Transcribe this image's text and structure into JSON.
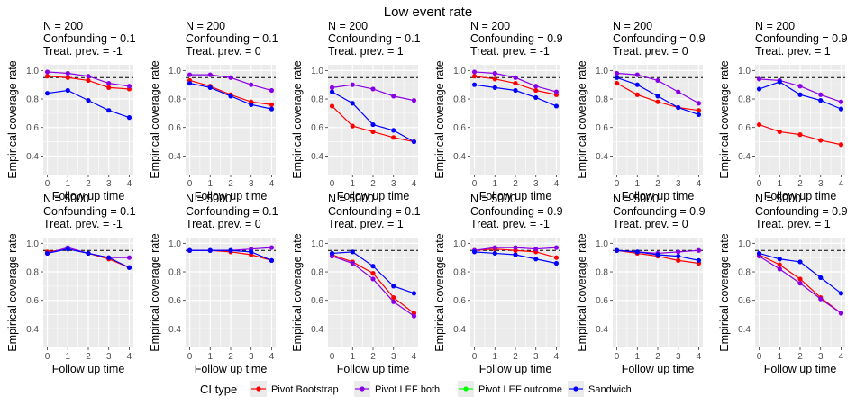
{
  "chart_data": {
    "type": "line",
    "title": "Low event rate",
    "xlabel": "Follow up time",
    "ylabel": "Empirical coverage rate",
    "x": [
      0,
      1,
      2,
      3,
      4
    ],
    "ylim": [
      0.27,
      1.04
    ],
    "yticks": [
      0.4,
      0.6,
      0.8,
      1.0
    ],
    "ytick_labels": [
      "0.4",
      "0.6",
      "0.8",
      "1.0"
    ],
    "reference_line": 0.95,
    "legend": {
      "title": "CI type",
      "position": "bottom",
      "entries": [
        {
          "label": "Pivot Bootstrap",
          "color": "#ff0000"
        },
        {
          "label": "Pivot LEF both",
          "color": "#8a00e6"
        },
        {
          "label": "Pivot LEF outcome",
          "color": "#00ff00"
        },
        {
          "label": "Sandwich",
          "color": "#0000ff"
        }
      ]
    },
    "panels": [
      {
        "title": [
          "N = 200",
          "Confounding = 0.1",
          "Treat. prev. = -1"
        ],
        "series": [
          {
            "name": "Pivot Bootstrap",
            "values": [
              0.96,
              0.95,
              0.93,
              0.88,
              0.87
            ]
          },
          {
            "name": "Pivot LEF both",
            "values": [
              0.99,
              0.98,
              0.96,
              0.91,
              0.89
            ]
          },
          {
            "name": "Sandwich",
            "values": [
              0.84,
              0.86,
              0.79,
              0.72,
              0.67
            ]
          }
        ]
      },
      {
        "title": [
          "N = 200",
          "Confounding = 0.1",
          "Treat. prev. = 0"
        ],
        "series": [
          {
            "name": "Pivot Bootstrap",
            "values": [
              0.93,
              0.89,
              0.83,
              0.78,
              0.76
            ]
          },
          {
            "name": "Pivot LEF both",
            "values": [
              0.97,
              0.97,
              0.95,
              0.9,
              0.86
            ]
          },
          {
            "name": "Sandwich",
            "values": [
              0.91,
              0.88,
              0.82,
              0.76,
              0.73
            ]
          }
        ]
      },
      {
        "title": [
          "N = 200",
          "Confounding = 0.1",
          "Treat. prev. = 1"
        ],
        "series": [
          {
            "name": "Pivot Bootstrap",
            "values": [
              0.75,
              0.61,
              0.57,
              0.53,
              0.5
            ]
          },
          {
            "name": "Pivot LEF both",
            "values": [
              0.88,
              0.9,
              0.87,
              0.82,
              0.79
            ]
          },
          {
            "name": "Sandwich",
            "values": [
              0.85,
              0.77,
              0.62,
              0.58,
              0.5
            ]
          }
        ]
      },
      {
        "title": [
          "N = 200",
          "Confounding = 0.9",
          "Treat. prev. = -1"
        ],
        "series": [
          {
            "name": "Pivot Bootstrap",
            "values": [
              0.96,
              0.94,
              0.91,
              0.86,
              0.83
            ]
          },
          {
            "name": "Pivot LEF both",
            "values": [
              0.99,
              0.98,
              0.95,
              0.89,
              0.85
            ]
          },
          {
            "name": "Sandwich",
            "values": [
              0.9,
              0.88,
              0.86,
              0.81,
              0.75
            ]
          }
        ]
      },
      {
        "title": [
          "N = 200",
          "Confounding = 0.9",
          "Treat. prev. = 0"
        ],
        "series": [
          {
            "name": "Pivot Bootstrap",
            "values": [
              0.91,
              0.83,
              0.78,
              0.74,
              0.72
            ]
          },
          {
            "name": "Pivot LEF both",
            "values": [
              0.98,
              0.97,
              0.93,
              0.85,
              0.77
            ]
          },
          {
            "name": "Sandwich",
            "values": [
              0.95,
              0.9,
              0.82,
              0.74,
              0.69
            ]
          }
        ]
      },
      {
        "title": [
          "N = 200",
          "Confounding = 0.9",
          "Treat. prev. = 1"
        ],
        "series": [
          {
            "name": "Pivot Bootstrap",
            "values": [
              0.62,
              0.57,
              0.55,
              0.51,
              0.48
            ]
          },
          {
            "name": "Pivot LEF both",
            "values": [
              0.94,
              0.93,
              0.89,
              0.83,
              0.78
            ]
          },
          {
            "name": "Sandwich",
            "values": [
              0.87,
              0.92,
              0.83,
              0.79,
              0.73
            ]
          }
        ]
      },
      {
        "title": [
          "N = 5000",
          "Confounding = 0.1",
          "Treat. prev. = -1"
        ],
        "series": [
          {
            "name": "Pivot Bootstrap",
            "values": [
              0.94,
              0.96,
              0.93,
              0.89,
              0.83
            ]
          },
          {
            "name": "Pivot LEF both",
            "values": [
              0.93,
              0.97,
              0.93,
              0.9,
              0.9
            ]
          },
          {
            "name": "Sandwich",
            "values": [
              0.93,
              0.96,
              0.93,
              0.9,
              0.83
            ]
          }
        ]
      },
      {
        "title": [
          "N = 5000",
          "Confounding = 0.1",
          "Treat. prev. = 0"
        ],
        "series": [
          {
            "name": "Pivot Bootstrap",
            "values": [
              0.95,
              0.95,
              0.94,
              0.92,
              0.88
            ]
          },
          {
            "name": "Pivot LEF both",
            "values": [
              0.95,
              0.95,
              0.95,
              0.96,
              0.97
            ]
          },
          {
            "name": "Sandwich",
            "values": [
              0.95,
              0.95,
              0.95,
              0.94,
              0.88
            ]
          }
        ]
      },
      {
        "title": [
          "N = 5000",
          "Confounding = 0.1",
          "Treat. prev. = 1"
        ],
        "series": [
          {
            "name": "Pivot Bootstrap",
            "values": [
              0.92,
              0.87,
              0.79,
              0.62,
              0.51
            ]
          },
          {
            "name": "Pivot LEF both",
            "values": [
              0.91,
              0.86,
              0.75,
              0.59,
              0.49
            ]
          },
          {
            "name": "Sandwich",
            "values": [
              0.93,
              0.94,
              0.84,
              0.7,
              0.65
            ]
          }
        ]
      },
      {
        "title": [
          "N = 5000",
          "Confounding = 0.9",
          "Treat. prev. = -1"
        ],
        "series": [
          {
            "name": "Pivot Bootstrap",
            "values": [
              0.95,
              0.96,
              0.95,
              0.94,
              0.9
            ]
          },
          {
            "name": "Pivot LEF both",
            "values": [
              0.95,
              0.97,
              0.97,
              0.96,
              0.97
            ]
          },
          {
            "name": "Sandwich",
            "values": [
              0.94,
              0.93,
              0.92,
              0.89,
              0.86
            ]
          }
        ]
      },
      {
        "title": [
          "N = 5000",
          "Confounding = 0.9",
          "Treat. prev. = 0"
        ],
        "series": [
          {
            "name": "Pivot Bootstrap",
            "values": [
              0.95,
              0.93,
              0.91,
              0.88,
              0.86
            ]
          },
          {
            "name": "Pivot LEF both",
            "values": [
              0.95,
              0.94,
              0.93,
              0.94,
              0.95
            ]
          },
          {
            "name": "Sandwich",
            "values": [
              0.95,
              0.94,
              0.92,
              0.91,
              0.88
            ]
          }
        ]
      },
      {
        "title": [
          "N = 5000",
          "Confounding = 0.9",
          "Treat. prev. = 1"
        ],
        "series": [
          {
            "name": "Pivot Bootstrap",
            "values": [
              0.92,
              0.85,
              0.75,
              0.62,
              0.51
            ]
          },
          {
            "name": "Pivot LEF both",
            "values": [
              0.91,
              0.82,
              0.72,
              0.61,
              0.51
            ]
          },
          {
            "name": "Sandwich",
            "values": [
              0.93,
              0.89,
              0.87,
              0.76,
              0.65
            ]
          }
        ]
      }
    ]
  }
}
